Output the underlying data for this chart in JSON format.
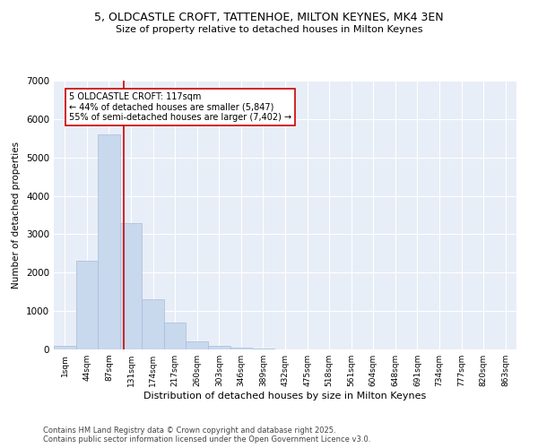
{
  "title_line1": "5, OLDCASTLE CROFT, TATTENHOE, MILTON KEYNES, MK4 3EN",
  "title_line2": "Size of property relative to detached houses in Milton Keynes",
  "xlabel": "Distribution of detached houses by size in Milton Keynes",
  "ylabel": "Number of detached properties",
  "bar_labels": [
    "1sqm",
    "44sqm",
    "87sqm",
    "131sqm",
    "174sqm",
    "217sqm",
    "260sqm",
    "303sqm",
    "346sqm",
    "389sqm",
    "432sqm",
    "475sqm",
    "518sqm",
    "561sqm",
    "604sqm",
    "648sqm",
    "691sqm",
    "734sqm",
    "777sqm",
    "820sqm",
    "863sqm"
  ],
  "bar_values": [
    100,
    2300,
    5600,
    3300,
    1300,
    700,
    200,
    100,
    50,
    15,
    5,
    2,
    1,
    0,
    0,
    0,
    0,
    0,
    0,
    0,
    0
  ],
  "bar_color": "#c8d8ed",
  "bar_edgecolor": "#aabcda",
  "vline_x_idx": 2.68,
  "vline_color": "#cc0000",
  "ylim": [
    0,
    7000
  ],
  "yticks": [
    0,
    1000,
    2000,
    3000,
    4000,
    5000,
    6000,
    7000
  ],
  "annotation_text": "5 OLDCASTLE CROFT: 117sqm\n← 44% of detached houses are smaller (5,847)\n55% of semi-detached houses are larger (7,402) →",
  "annotation_box_facecolor": "#ffffff",
  "annotation_box_edgecolor": "#cc0000",
  "footer_line1": "Contains HM Land Registry data © Crown copyright and database right 2025.",
  "footer_line2": "Contains public sector information licensed under the Open Government Licence v3.0.",
  "plot_bg_color": "#e8eef7",
  "fig_bg_color": "#ffffff",
  "grid_color": "#ffffff"
}
